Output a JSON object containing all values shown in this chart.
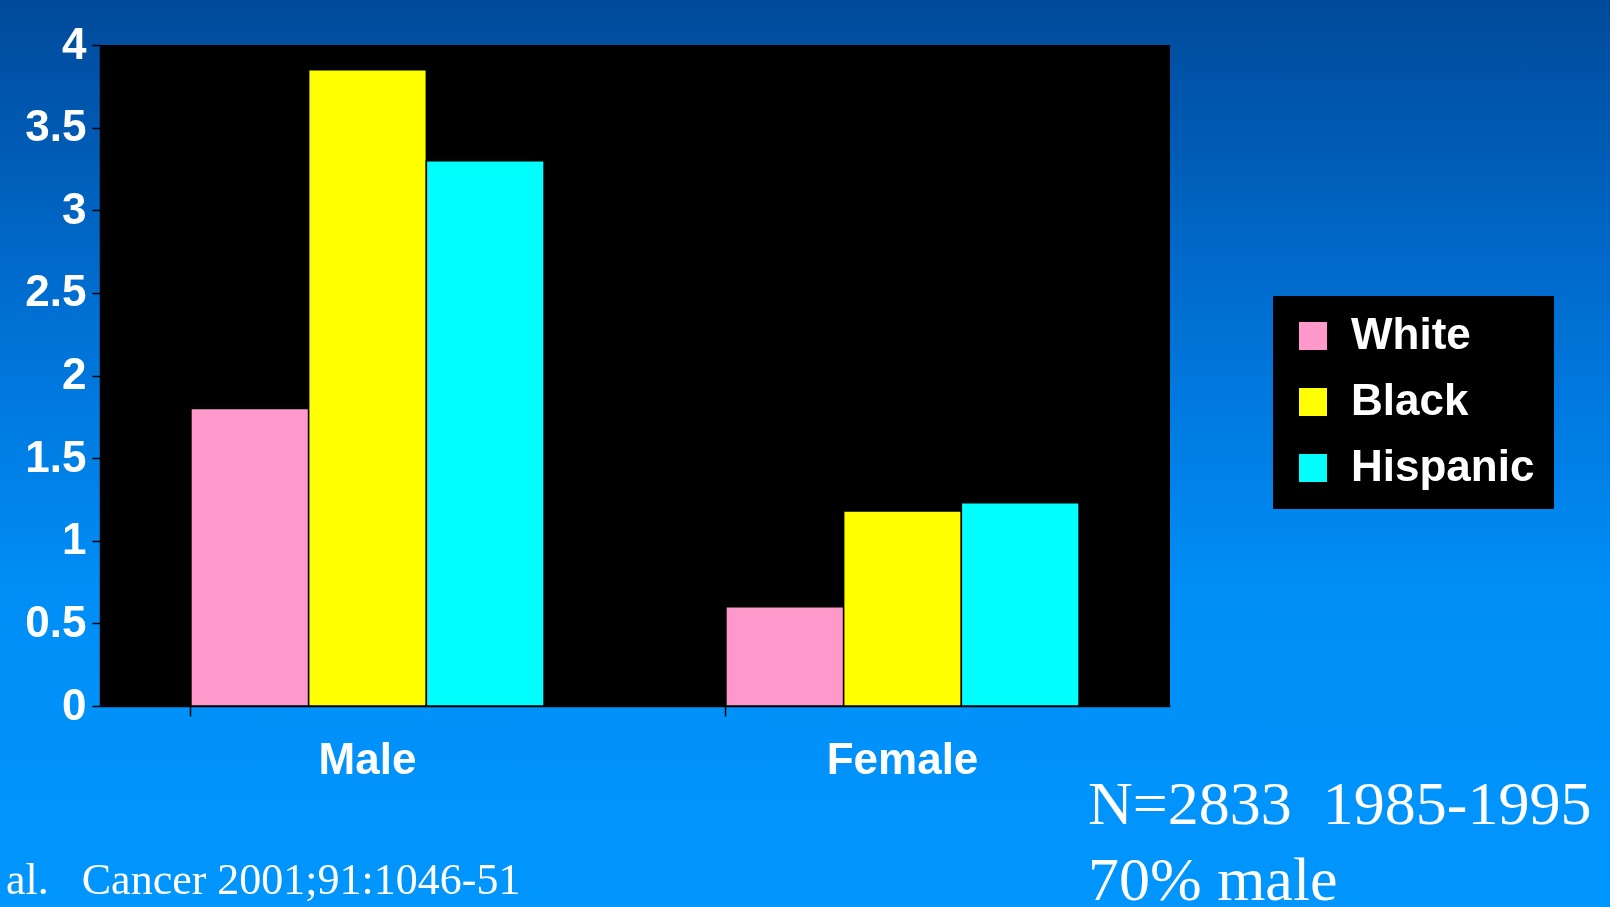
{
  "chart_data": {
    "type": "bar",
    "categories": [
      "Male",
      "Female"
    ],
    "series": [
      {
        "name": "White",
        "color": "#ff99cc",
        "values": [
          1.8,
          0.6
        ]
      },
      {
        "name": "Black",
        "color": "#ffff00",
        "values": [
          3.85,
          1.18
        ]
      },
      {
        "name": "Hispanic",
        "color": "#00ffff",
        "values": [
          3.3,
          1.23
        ]
      }
    ],
    "ylim": [
      0,
      4
    ],
    "yticks": [
      0,
      0.5,
      1,
      1.5,
      2,
      2.5,
      3,
      3.5,
      4
    ],
    "legend": "right",
    "annotations": [
      "N=2833  1985-1995",
      "70% male",
      "al.   Cancer 2001;91:1046-51"
    ]
  }
}
